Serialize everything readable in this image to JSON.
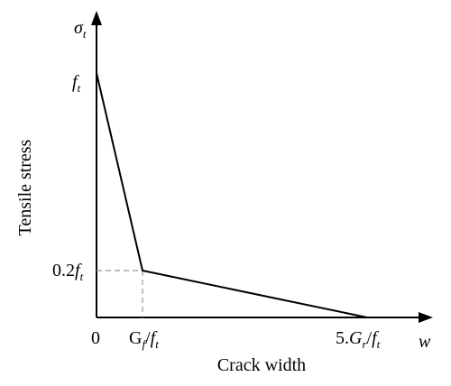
{
  "diagram": {
    "axes": {
      "y_symbol": "σ",
      "y_symbol_sub": "t",
      "x_symbol": "w",
      "y_title": "Tensile stress",
      "x_title": "Crack width"
    },
    "y_ticks": {
      "ft_main": "f",
      "ft_sub": "t",
      "low_coef": "0.2",
      "low_main": "f",
      "low_sub": "t"
    },
    "x_ticks": {
      "origin": "0",
      "gf_G": "G",
      "gf_Gsub": "f",
      "gf_slash": "/",
      "gf_f": "f",
      "gf_fsub": "t",
      "end_coef": "5.",
      "end_G": "G",
      "end_Gsub": "r",
      "end_slash": "/",
      "end_f": "f",
      "end_fsub": "t"
    },
    "softening_curve": {
      "knee_stress_fraction": 0.2
    }
  }
}
